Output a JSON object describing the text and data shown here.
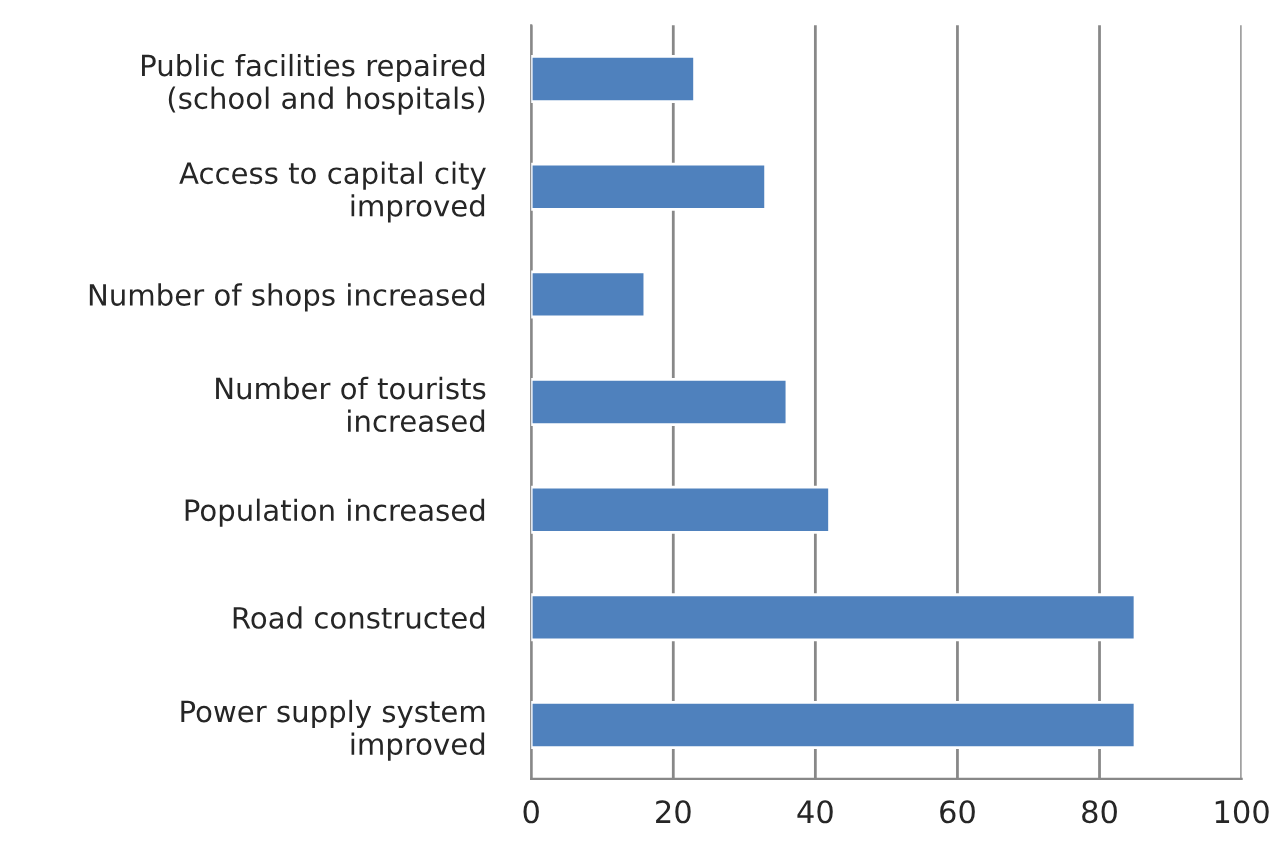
{
  "chart_data": {
    "type": "bar",
    "orientation": "horizontal",
    "categories": [
      "Public facilities repaired\n(school and hospitals)",
      "Access to capital city\nimproved",
      "Number of shops increased",
      "Number of tourists\nincreased",
      "Population increased",
      "Road constructed",
      "Power supply system\nimproved"
    ],
    "values": [
      23,
      33,
      16,
      36,
      42,
      85,
      85
    ],
    "color": "#4f81bd",
    "xlim": [
      0,
      100
    ],
    "xticks": [
      0,
      20,
      40,
      60,
      80,
      100
    ],
    "grid": "x"
  }
}
